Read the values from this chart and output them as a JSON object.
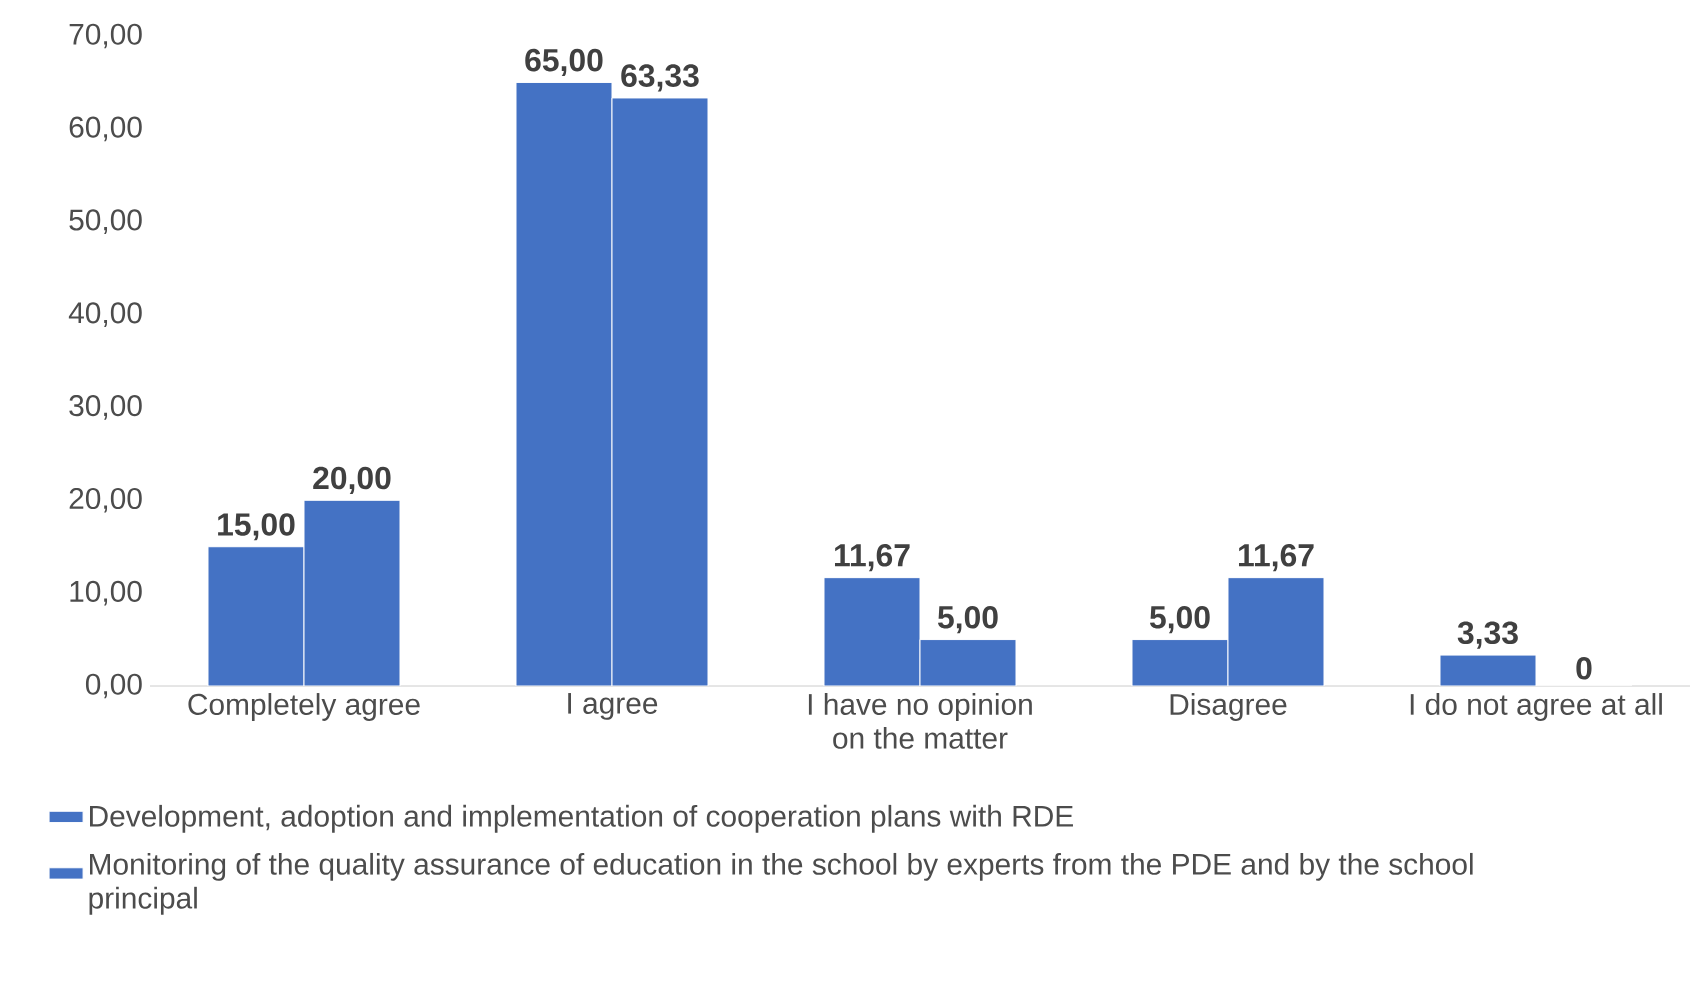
{
  "chart_data": {
    "type": "bar",
    "categories": [
      "Completely agree",
      "I agree",
      "I have no opinion on the matter",
      "Disagree",
      "I do not agree at all"
    ],
    "series": [
      {
        "name": "Development, adoption and implementation of cooperation plans with RDE",
        "color": "#4472c4",
        "values": [
          15,
          65,
          11.67,
          5,
          3.33
        ],
        "value_labels": [
          "15,00",
          "65,00",
          "11,67",
          "5,00",
          "3,33"
        ]
      },
      {
        "name": "Monitoring of the quality assurance of education in the school by experts from the PDE and by the school principal",
        "color": "#4472c4",
        "values": [
          20,
          63.33,
          5,
          11.67,
          0
        ],
        "value_labels": [
          "20,00",
          "63,33",
          "5,00",
          "11,67",
          "0"
        ]
      }
    ],
    "ylim": [
      0,
      70
    ],
    "yticks": [
      {
        "value": 0,
        "label": "0,00"
      },
      {
        "value": 10,
        "label": "10,00"
      },
      {
        "value": 20,
        "label": "20,00"
      },
      {
        "value": 30,
        "label": "30,00"
      },
      {
        "value": 40,
        "label": "40,00"
      },
      {
        "value": 50,
        "label": "50,00"
      },
      {
        "value": 60,
        "label": "60,00"
      },
      {
        "value": 70,
        "label": "70,00"
      }
    ],
    "legend": "bottom",
    "grid": false
  }
}
